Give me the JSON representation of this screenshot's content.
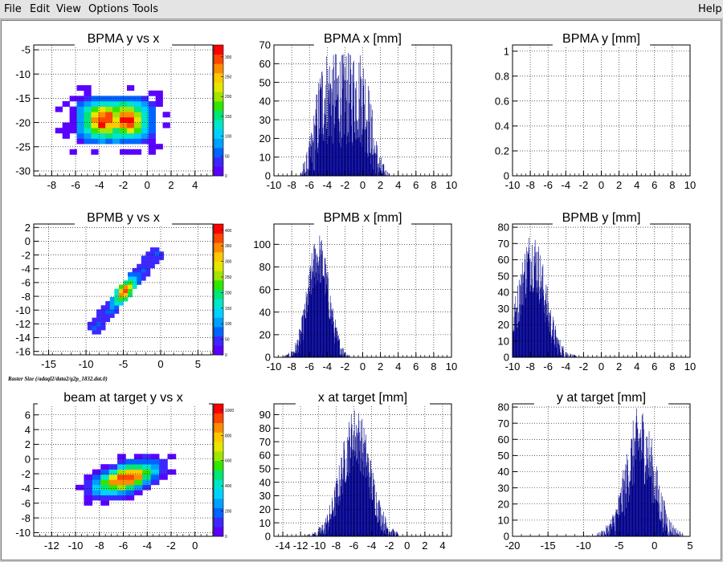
{
  "menu": {
    "file": "File",
    "edit": "Edit",
    "view": "View",
    "options": "Options",
    "tools": "Tools",
    "help": "Help"
  },
  "canvas_caption": "Raster Size (/adaql2/data2/g2p_1832.dat.0)",
  "colors": {
    "histogram_fill": "#00008b",
    "grid": "#000000",
    "axis": "#000000",
    "palette": [
      "#5a00ff",
      "#3c28ff",
      "#0064ff",
      "#00a0ff",
      "#00d2ff",
      "#00e6c8",
      "#00e678",
      "#32e600",
      "#a0e600",
      "#e6e600",
      "#ffc800",
      "#ff8c00",
      "#ff4600",
      "#ff0000"
    ]
  },
  "chart_data": [
    {
      "id": "bpma_yx",
      "type": "heatmap",
      "title": "BPMA y vs x",
      "xlim": [
        -9.5,
        5.5
      ],
      "ylim": [
        -31,
        -4
      ],
      "xticks": [
        -8,
        -6,
        -4,
        -2,
        0,
        2,
        4
      ],
      "yticks": [
        -30,
        -25,
        -20,
        -15,
        -10,
        -5
      ],
      "color_max": 330,
      "color_ticks": [
        0,
        50,
        100,
        150,
        200,
        250,
        300
      ],
      "blob": {
        "shape": "rounded",
        "cx": -2.7,
        "cy": -19.5,
        "sx": 3.6,
        "sy": 5.4,
        "peak": 330,
        "bin_x": 0.6,
        "bin_y": 1.1,
        "hot_spots": [
          [
            -3.8,
            -19.5
          ],
          [
            -1.5,
            -19.5
          ]
        ]
      }
    },
    {
      "id": "bpma_x",
      "type": "histogram",
      "title": "BPMA x [mm]",
      "xlim": [
        -10,
        10
      ],
      "ylim": [
        0,
        70
      ],
      "xticks": [
        -10,
        -8,
        -6,
        -4,
        -2,
        0,
        2,
        4,
        6,
        8,
        10
      ],
      "yticks": [
        0,
        10,
        20,
        30,
        40,
        50,
        60,
        70
      ],
      "peak": 42,
      "noise_max": 67,
      "shape": {
        "kind": "plateau",
        "center": -2.2,
        "half_width": 2.0,
        "edge_sigma": 1.0,
        "range": [
          -7,
          3
        ]
      }
    },
    {
      "id": "bpma_y",
      "type": "histogram",
      "title": "BPMA y [mm]",
      "xlim": [
        -10,
        10
      ],
      "ylim": [
        0,
        1.05
      ],
      "xticks": [
        -10,
        -8,
        -6,
        -4,
        -2,
        0,
        2,
        4,
        6,
        8,
        10
      ],
      "yticks": [
        0,
        0.2,
        0.4,
        0.6,
        0.8,
        1
      ],
      "peak": 0
    },
    {
      "id": "bpmb_yx",
      "type": "heatmap",
      "title": "BPMB y vs x",
      "xlim": [
        -17,
        7
      ],
      "ylim": [
        -16.5,
        2.5
      ],
      "xticks": [
        -15,
        -10,
        -5,
        0,
        5
      ],
      "yticks": [
        -16,
        -14,
        -12,
        -10,
        -8,
        -6,
        -4,
        -2,
        0,
        2
      ],
      "color_max": 420,
      "color_ticks": [
        0,
        50,
        100,
        150,
        200,
        250,
        300,
        350,
        400
      ],
      "blob": {
        "shape": "line",
        "x0": -9.2,
        "y0": -13.0,
        "x1": -0.2,
        "y1": -1.2,
        "width": 1.0,
        "peak": 420,
        "bin_x": 0.6,
        "bin_y": 0.6,
        "hot_center": [
          -4.8,
          -7.2
        ]
      }
    },
    {
      "id": "bpmb_x",
      "type": "histogram",
      "title": "BPMB x [mm]",
      "xlim": [
        -10,
        10
      ],
      "ylim": [
        0,
        118
      ],
      "xticks": [
        -10,
        -8,
        -6,
        -4,
        -2,
        0,
        2,
        4,
        6,
        8,
        10
      ],
      "yticks": [
        0,
        20,
        40,
        60,
        80,
        100
      ],
      "peak": 88,
      "noise_max": 110,
      "shape": {
        "kind": "gauss",
        "center": -5.0,
        "sigma": 1.15,
        "range": [
          -9,
          -1.5
        ]
      }
    },
    {
      "id": "bpmb_y",
      "type": "histogram",
      "title": "BPMB y [mm]",
      "xlim": [
        -10,
        10
      ],
      "ylim": [
        0,
        82
      ],
      "xticks": [
        -10,
        -8,
        -6,
        -4,
        -2,
        0,
        2,
        4,
        6,
        8,
        10
      ],
      "yticks": [
        0,
        10,
        20,
        30,
        40,
        50,
        60,
        70,
        80
      ],
      "peak": 60,
      "noise_max": 78,
      "shape": {
        "kind": "gauss",
        "center": -7.8,
        "sigma": 1.45,
        "range": [
          -10,
          -2
        ]
      }
    },
    {
      "id": "target_yx",
      "type": "heatmap",
      "title": "beam at target y vs x",
      "xlim": [
        -13.5,
        1.5
      ],
      "ylim": [
        -10.5,
        7.5
      ],
      "xticks": [
        -12,
        -10,
        -8,
        -6,
        -4,
        -2,
        0
      ],
      "yticks": [
        -10,
        -8,
        -6,
        -4,
        -2,
        0,
        2,
        4,
        6
      ],
      "color_max": 1050,
      "color_ticks": [
        0,
        200,
        400,
        600,
        800,
        1000
      ],
      "blob": {
        "shape": "tilted",
        "cx": -5.8,
        "cy": -2.6,
        "su": 3.2,
        "sv": 1.7,
        "angle_deg": 35,
        "peak": 1050,
        "bin_x": 0.7,
        "bin_y": 0.7
      }
    },
    {
      "id": "target_x",
      "type": "histogram",
      "title": "x at target [mm]",
      "xlim": [
        -15,
        5
      ],
      "ylim": [
        0,
        98
      ],
      "xticks": [
        -14,
        -12,
        -10,
        -8,
        -6,
        -4,
        -2,
        0,
        2,
        4
      ],
      "yticks": [
        0,
        10,
        20,
        30,
        40,
        50,
        60,
        70,
        80,
        90
      ],
      "peak": 74,
      "noise_max": 95,
      "shape": {
        "kind": "gauss",
        "center": -5.8,
        "sigma": 1.6,
        "range": [
          -12,
          -1
        ]
      }
    },
    {
      "id": "target_y",
      "type": "histogram",
      "title": "y at target [mm]",
      "xlim": [
        -20,
        5
      ],
      "ylim": [
        0,
        82
      ],
      "xticks": [
        -20,
        -15,
        -10,
        -5,
        0,
        5
      ],
      "yticks": [
        0,
        10,
        20,
        30,
        40,
        50,
        60,
        70,
        80
      ],
      "peak": 58,
      "noise_max": 80,
      "shape": {
        "kind": "gauss",
        "center": -2.0,
        "sigma": 1.9,
        "range": [
          -10,
          4
        ]
      }
    }
  ]
}
